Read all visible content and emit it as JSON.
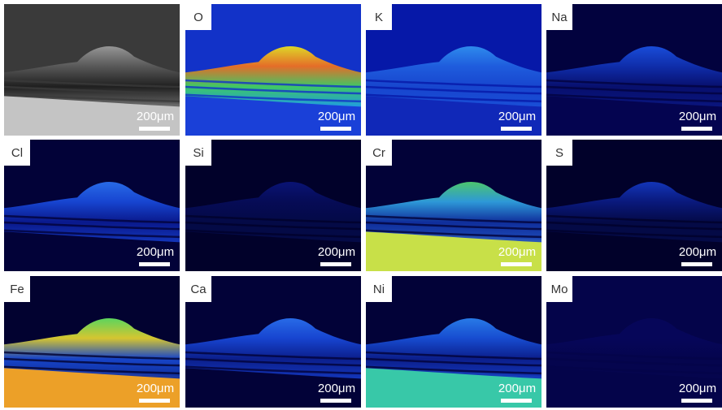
{
  "panels": [
    {
      "label": "",
      "scale_bar": "200μm"
    },
    {
      "label": "O",
      "scale_bar": "200μm"
    },
    {
      "label": "K",
      "scale_bar": "200μm"
    },
    {
      "label": "Na",
      "scale_bar": "200μm"
    },
    {
      "label": "Cl",
      "scale_bar": "200μm"
    },
    {
      "label": "Si",
      "scale_bar": "200μm"
    },
    {
      "label": "Cr",
      "scale_bar": "200μm"
    },
    {
      "label": "S",
      "scale_bar": "200μm"
    },
    {
      "label": "Fe",
      "scale_bar": "200μm"
    },
    {
      "label": "Ca",
      "scale_bar": "200μm"
    },
    {
      "label": "Ni",
      "scale_bar": "200μm"
    },
    {
      "label": "Mo",
      "scale_bar": "200μm"
    }
  ]
}
